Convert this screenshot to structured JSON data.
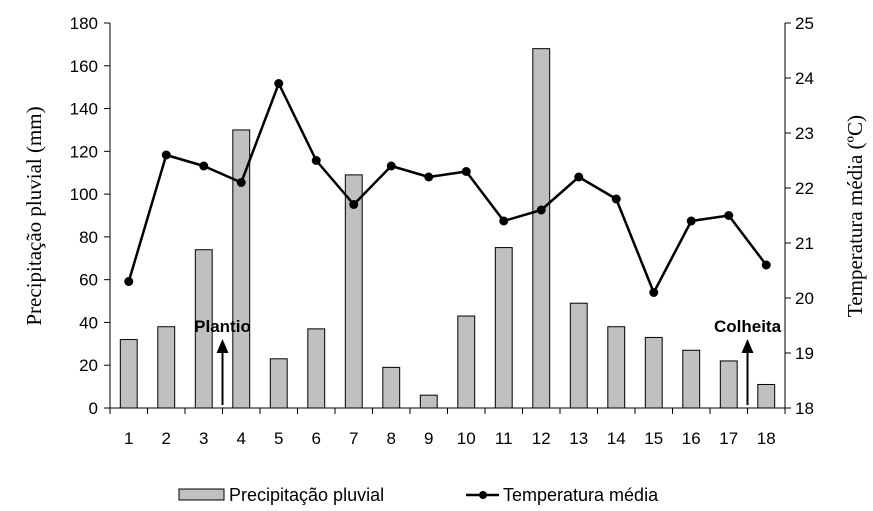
{
  "chart_data": {
    "type": "bar",
    "categories": [
      "1",
      "2",
      "3",
      "4",
      "5",
      "6",
      "7",
      "8",
      "9",
      "10",
      "11",
      "12",
      "13",
      "14",
      "15",
      "16",
      "17",
      "18"
    ],
    "series": [
      {
        "name": "Precipitação pluvial",
        "type": "bar",
        "axis": "left",
        "values": [
          32,
          38,
          74,
          130,
          23,
          37,
          109,
          19,
          6,
          43,
          75,
          168,
          49,
          38,
          33,
          27,
          22,
          11
        ]
      },
      {
        "name": "Temperatura média",
        "type": "line",
        "axis": "right",
        "values": [
          20.3,
          22.6,
          22.4,
          22.1,
          23.9,
          22.5,
          21.7,
          22.4,
          22.2,
          22.3,
          21.4,
          21.6,
          22.2,
          21.8,
          20.1,
          21.4,
          21.5,
          20.6
        ]
      }
    ],
    "ylabel": "Precipitação pluvial (mm)",
    "ylim": [
      0,
      180
    ],
    "yticks": [
      "0",
      "20",
      "40",
      "60",
      "80",
      "100",
      "120",
      "140",
      "160",
      "180"
    ],
    "y2label": "Temperatura média (ºC)",
    "y2lim": [
      18,
      25
    ],
    "y2ticks": [
      "18",
      "19",
      "20",
      "21",
      "22",
      "23",
      "24",
      "25"
    ],
    "annotations": [
      {
        "text": "Plantio",
        "category": "3",
        "offset": 0.5
      },
      {
        "text": "Colheita",
        "category": "17",
        "offset": 0.5
      }
    ],
    "legend": {
      "position": "bottom"
    },
    "colors": {
      "bar": "#c0c0c0",
      "line": "#000000"
    },
    "grid": false
  }
}
